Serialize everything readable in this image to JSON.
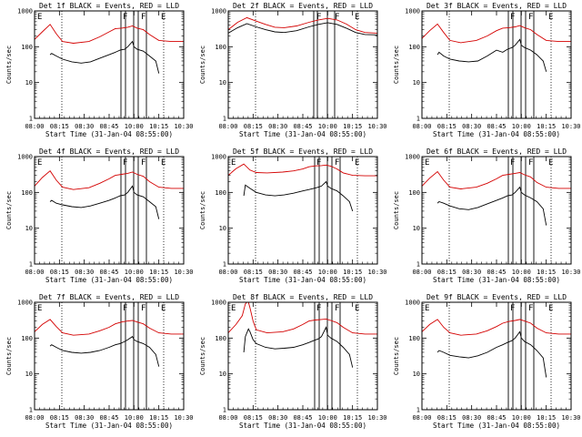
{
  "chart_data": [
    {
      "type": "line",
      "title": "Det 1f BLACK = Events, RED = LLD",
      "xlabel": "Start Time (31-Jan-04 08:55:00)",
      "ylabel": "Counts/sec",
      "yscale": "log",
      "ylim": [
        1,
        1000
      ],
      "xlim": [
        0,
        96
      ],
      "xticks": [
        "08:00",
        "08:15",
        "08:30",
        "08:45",
        "10:00",
        "10:15",
        "10:30"
      ],
      "yticks": [
        "1",
        "10",
        "100",
        "1000"
      ],
      "flags": [
        "E",
        "F",
        "F",
        "E"
      ],
      "series": [
        {
          "name": "LLD",
          "color": "#d40000",
          "x": [
            0,
            5,
            10,
            14,
            18,
            25,
            35,
            42,
            48,
            52,
            56,
            60,
            63,
            66,
            70,
            74,
            80,
            88,
            96
          ],
          "y": [
            160,
            260,
            420,
            230,
            140,
            125,
            140,
            190,
            260,
            320,
            330,
            350,
            380,
            330,
            300,
            220,
            150,
            140,
            140
          ]
        },
        {
          "name": "Events",
          "color": "#000000",
          "x": [
            10,
            11,
            14,
            18,
            24,
            30,
            36,
            42,
            48,
            52,
            55,
            58,
            60,
            63,
            64,
            66,
            70,
            74,
            78,
            80
          ],
          "y": [
            60,
            65,
            55,
            45,
            38,
            35,
            38,
            48,
            60,
            70,
            80,
            85,
            100,
            140,
            100,
            85,
            75,
            55,
            40,
            18
          ]
        }
      ]
    },
    {
      "type": "line",
      "title": "Det 2f BLACK = Events, RED = LLD",
      "xlabel": "Start Time (31-Jan-04 08:55:00)",
      "ylabel": "Counts/sec",
      "yscale": "log",
      "ylim": [
        1,
        1000
      ],
      "xlim": [
        0,
        96
      ],
      "xticks": [
        "08:00",
        "08:15",
        "08:30",
        "08:45",
        "10:00",
        "10:15",
        "10:30"
      ],
      "yticks": [
        "1",
        "10",
        "100",
        "1000"
      ],
      "flags": [
        "F",
        "F",
        "E"
      ],
      "series": [
        {
          "name": "LLD",
          "color": "#d40000",
          "x": [
            0,
            6,
            12,
            18,
            24,
            30,
            36,
            44,
            52,
            58,
            64,
            70,
            76,
            82,
            88,
            96
          ],
          "y": [
            300,
            480,
            650,
            520,
            420,
            350,
            340,
            380,
            480,
            560,
            620,
            560,
            430,
            300,
            250,
            240
          ]
        },
        {
          "name": "Events",
          "color": "#000000",
          "x": [
            0,
            6,
            12,
            18,
            24,
            30,
            36,
            44,
            52,
            58,
            64,
            70,
            76,
            82,
            88,
            96
          ],
          "y": [
            240,
            340,
            440,
            360,
            300,
            260,
            250,
            280,
            360,
            420,
            470,
            420,
            330,
            250,
            220,
            215
          ]
        }
      ]
    },
    {
      "type": "line",
      "title": "Det 3f BLACK = Events, RED = LLD",
      "xlabel": "Start Time (31-Jan-04 08:55:00)",
      "ylabel": "Counts/sec",
      "yscale": "log",
      "ylim": [
        1,
        1000
      ],
      "xlim": [
        0,
        96
      ],
      "xticks": [
        "08:00",
        "08:15",
        "08:30",
        "08:45",
        "10:00",
        "10:15",
        "10:30"
      ],
      "yticks": [
        "1",
        "10",
        "100",
        "1000"
      ],
      "flags": [
        "F",
        "F",
        "E"
      ],
      "series": [
        {
          "name": "LLD",
          "color": "#d40000",
          "x": [
            0,
            5,
            10,
            14,
            18,
            25,
            35,
            42,
            48,
            52,
            56,
            60,
            63,
            66,
            70,
            74,
            80,
            88,
            96
          ],
          "y": [
            170,
            280,
            430,
            250,
            150,
            130,
            150,
            200,
            280,
            330,
            340,
            360,
            390,
            340,
            300,
            220,
            150,
            140,
            140
          ]
        },
        {
          "name": "Events",
          "color": "#000000",
          "x": [
            10,
            11,
            14,
            18,
            24,
            30,
            36,
            42,
            48,
            52,
            55,
            58,
            60,
            63,
            64,
            66,
            70,
            74,
            78,
            80
          ],
          "y": [
            60,
            70,
            55,
            45,
            40,
            38,
            40,
            55,
            80,
            70,
            85,
            95,
            110,
            160,
            110,
            95,
            80,
            60,
            40,
            20
          ]
        }
      ]
    },
    {
      "type": "line",
      "title": "Det 4f BLACK = Events, RED = LLD",
      "xlabel": "Start Time (31-Jan-04 08:55:00)",
      "ylabel": "Counts/sec",
      "yscale": "log",
      "ylim": [
        1,
        1000
      ],
      "xlim": [
        0,
        96
      ],
      "xticks": [
        "08:00",
        "08:15",
        "08:30",
        "08:45",
        "10:00",
        "10:15",
        "10:30"
      ],
      "yticks": [
        "1",
        "10",
        "100",
        "1000"
      ],
      "flags": [
        "E",
        "F",
        "F",
        "E"
      ],
      "series": [
        {
          "name": "LLD",
          "color": "#d40000",
          "x": [
            0,
            5,
            10,
            14,
            18,
            25,
            35,
            42,
            48,
            52,
            56,
            60,
            63,
            66,
            70,
            74,
            80,
            88,
            96
          ],
          "y": [
            150,
            260,
            400,
            220,
            140,
            120,
            135,
            180,
            240,
            300,
            320,
            340,
            370,
            320,
            280,
            200,
            140,
            130,
            130
          ]
        },
        {
          "name": "Events",
          "color": "#000000",
          "x": [
            10,
            11,
            14,
            18,
            24,
            30,
            36,
            42,
            48,
            52,
            55,
            58,
            60,
            63,
            64,
            66,
            70,
            74,
            78,
            80
          ],
          "y": [
            55,
            60,
            50,
            45,
            40,
            38,
            42,
            50,
            60,
            70,
            80,
            85,
            100,
            150,
            100,
            85,
            75,
            55,
            40,
            18
          ]
        }
      ]
    },
    {
      "type": "line",
      "title": "Det 5f BLACK = Events, RED = LLD",
      "xlabel": "Start Time (31-Jan-04 08:55:00)",
      "ylabel": "Counts/sec",
      "yscale": "log",
      "ylim": [
        1,
        1000
      ],
      "xlim": [
        0,
        96
      ],
      "xticks": [
        "08:00",
        "08:15",
        "08:30",
        "08:45",
        "10:00",
        "10:15",
        "10:30"
      ],
      "yticks": [
        "1",
        "10",
        "100",
        "1000"
      ],
      "flags": [
        "E",
        "F",
        "F",
        "E"
      ],
      "series": [
        {
          "name": "LLD",
          "color": "#d40000",
          "x": [
            0,
            5,
            10,
            14,
            18,
            25,
            35,
            42,
            48,
            52,
            56,
            60,
            63,
            66,
            70,
            74,
            80,
            88,
            96
          ],
          "y": [
            300,
            460,
            620,
            420,
            360,
            350,
            370,
            400,
            450,
            520,
            550,
            560,
            580,
            540,
            450,
            350,
            300,
            290,
            290
          ]
        },
        {
          "name": "Events",
          "color": "#000000",
          "x": [
            10,
            11,
            14,
            18,
            24,
            30,
            36,
            42,
            48,
            52,
            55,
            58,
            60,
            63,
            64,
            66,
            70,
            74,
            78,
            80
          ],
          "y": [
            80,
            160,
            130,
            100,
            85,
            80,
            85,
            95,
            110,
            120,
            130,
            140,
            150,
            200,
            150,
            130,
            110,
            80,
            55,
            30
          ]
        }
      ]
    },
    {
      "type": "line",
      "title": "Det 6f BLACK = Events, RED = LLD",
      "xlabel": "Start Time (31-Jan-04 08:55:00)",
      "ylabel": "Counts/sec",
      "yscale": "log",
      "ylim": [
        1,
        1000
      ],
      "xlim": [
        0,
        96
      ],
      "xticks": [
        "08:00",
        "08:15",
        "08:30",
        "08:45",
        "10:00",
        "10:15",
        "10:30"
      ],
      "yticks": [
        "1",
        "10",
        "100",
        "1000"
      ],
      "flags": [
        "E",
        "F",
        "F",
        "E"
      ],
      "series": [
        {
          "name": "LLD",
          "color": "#d40000",
          "x": [
            0,
            5,
            10,
            14,
            18,
            25,
            35,
            42,
            48,
            52,
            56,
            60,
            63,
            66,
            70,
            74,
            80,
            88,
            96
          ],
          "y": [
            150,
            250,
            380,
            220,
            140,
            125,
            140,
            180,
            240,
            300,
            320,
            340,
            360,
            310,
            270,
            190,
            140,
            130,
            130
          ]
        },
        {
          "name": "Events",
          "color": "#000000",
          "x": [
            10,
            11,
            14,
            18,
            24,
            30,
            36,
            42,
            48,
            52,
            55,
            58,
            60,
            63,
            64,
            66,
            70,
            74,
            78,
            80
          ],
          "y": [
            50,
            55,
            50,
            42,
            35,
            33,
            38,
            48,
            60,
            70,
            80,
            85,
            100,
            140,
            100,
            85,
            70,
            55,
            35,
            12
          ]
        }
      ]
    },
    {
      "type": "line",
      "title": "Det 7f BLACK = Events, RED = LLD",
      "xlabel": "Start Time (31-Jan-04 08:55:00)",
      "ylabel": "Counts/sec",
      "yscale": "log",
      "ylim": [
        1,
        1000
      ],
      "xlim": [
        0,
        96
      ],
      "xticks": [
        "08:00",
        "08:15",
        "08:30",
        "08:45",
        "10:00",
        "10:15",
        "10:30"
      ],
      "yticks": [
        "1",
        "10",
        "100",
        "1000"
      ],
      "flags": [
        "E",
        "F",
        "F",
        "E"
      ],
      "series": [
        {
          "name": "LLD",
          "color": "#d40000",
          "x": [
            0,
            5,
            10,
            14,
            18,
            25,
            35,
            42,
            48,
            52,
            56,
            60,
            63,
            66,
            70,
            74,
            80,
            88,
            96
          ],
          "y": [
            150,
            240,
            330,
            210,
            140,
            120,
            130,
            160,
            200,
            250,
            280,
            300,
            310,
            280,
            250,
            190,
            140,
            130,
            130
          ]
        },
        {
          "name": "Events",
          "color": "#000000",
          "x": [
            10,
            11,
            14,
            18,
            24,
            30,
            36,
            42,
            48,
            52,
            55,
            58,
            60,
            63,
            64,
            66,
            70,
            74,
            78,
            80
          ],
          "y": [
            60,
            65,
            55,
            45,
            40,
            38,
            40,
            45,
            55,
            65,
            70,
            80,
            90,
            110,
            90,
            80,
            70,
            55,
            35,
            16
          ]
        }
      ]
    },
    {
      "type": "line",
      "title": "Det 8f BLACK = Events, RED = LLD",
      "xlabel": "Start Time (31-Jan-04 08:55:00)",
      "ylabel": "Counts/sec",
      "yscale": "log",
      "ylim": [
        1,
        1000
      ],
      "xlim": [
        0,
        96
      ],
      "xticks": [
        "08:00",
        "08:15",
        "08:30",
        "08:45",
        "10:00",
        "10:15",
        "10:30"
      ],
      "yticks": [
        "1",
        "10",
        "100",
        "1000"
      ],
      "flags": [
        "E",
        "F",
        "F",
        "E"
      ],
      "series": [
        {
          "name": "LLD",
          "color": "#d40000",
          "x": [
            0,
            5,
            9,
            11,
            12,
            13,
            14,
            16,
            18,
            25,
            35,
            42,
            48,
            52,
            56,
            60,
            63,
            66,
            70,
            74,
            80,
            88,
            96
          ],
          "y": [
            140,
            240,
            420,
            900,
            1000,
            1000,
            700,
            300,
            170,
            140,
            150,
            180,
            240,
            300,
            320,
            330,
            340,
            310,
            270,
            200,
            140,
            130,
            130
          ]
        },
        {
          "name": "Events",
          "color": "#000000",
          "x": [
            10,
            11,
            13,
            14,
            16,
            18,
            24,
            30,
            36,
            42,
            48,
            52,
            55,
            58,
            60,
            63,
            64,
            66,
            70,
            74,
            78,
            80
          ],
          "y": [
            40,
            110,
            180,
            150,
            90,
            70,
            55,
            50,
            52,
            55,
            65,
            75,
            85,
            95,
            110,
            200,
            120,
            100,
            80,
            55,
            35,
            15
          ]
        }
      ]
    },
    {
      "type": "line",
      "title": "Det 9f BLACK = Events, RED = LLD",
      "xlabel": "Start Time (31-Jan-04 08:55:00)",
      "ylabel": "Counts/sec",
      "yscale": "log",
      "ylim": [
        1,
        1000
      ],
      "xlim": [
        0,
        96
      ],
      "xticks": [
        "08:00",
        "08:15",
        "08:30",
        "08:45",
        "10:00",
        "10:15",
        "10:30"
      ],
      "yticks": [
        "1",
        "10",
        "100",
        "1000"
      ],
      "flags": [
        "E",
        "F",
        "F",
        "E"
      ],
      "series": [
        {
          "name": "LLD",
          "color": "#d40000",
          "x": [
            0,
            5,
            10,
            14,
            18,
            25,
            35,
            42,
            48,
            52,
            56,
            60,
            63,
            66,
            70,
            74,
            80,
            88,
            96
          ],
          "y": [
            150,
            240,
            330,
            200,
            140,
            120,
            130,
            160,
            210,
            260,
            290,
            310,
            330,
            300,
            260,
            190,
            140,
            130,
            130
          ]
        },
        {
          "name": "Events",
          "color": "#000000",
          "x": [
            10,
            11,
            14,
            18,
            24,
            30,
            36,
            42,
            48,
            52,
            55,
            58,
            60,
            63,
            64,
            66,
            70,
            74,
            78,
            80
          ],
          "y": [
            40,
            45,
            40,
            33,
            30,
            28,
            32,
            40,
            55,
            65,
            75,
            85,
            100,
            150,
            100,
            80,
            65,
            45,
            28,
            8
          ]
        }
      ]
    }
  ]
}
